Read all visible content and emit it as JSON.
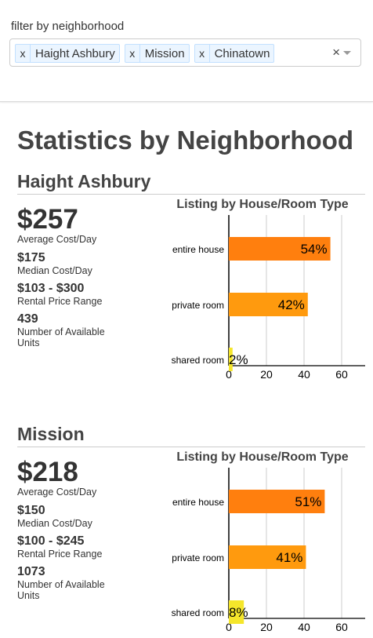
{
  "filter": {
    "label": "filter by neighborhood",
    "remove_glyph": "x",
    "clear_glyph": "×",
    "selected": [
      "Haight Ashbury",
      "Mission",
      "Chinatown"
    ]
  },
  "page_title": "Statistics by Neighborhood",
  "sections": [
    {
      "name": "Haight Ashbury",
      "average_cost": "$257",
      "average_cost_label": "Average Cost/Day",
      "median_cost": "$175",
      "median_cost_label": "Median Cost/Day",
      "price_range": "$103 - $300",
      "price_range_label": "Rental Price Range",
      "available_units": "439",
      "available_units_label": "Number of Available Units"
    },
    {
      "name": "Mission",
      "average_cost": "$218",
      "average_cost_label": "Average Cost/Day",
      "median_cost": "$150",
      "median_cost_label": "Median Cost/Day",
      "price_range": "$100 - $245",
      "price_range_label": "Rental Price Range",
      "available_units": "1073",
      "available_units_label": "Number of Available Units"
    }
  ],
  "chart_data": [
    {
      "type": "bar",
      "orientation": "horizontal",
      "title": "Listing by House/Room Type",
      "categories": [
        "entire house",
        "private room",
        "shared room"
      ],
      "values": [
        54,
        42,
        2
      ],
      "value_labels": [
        "54%",
        "42%",
        "2%"
      ],
      "colors": [
        "#ff7f0e",
        "#ff9a0e",
        "#f5e62b"
      ],
      "xlim": [
        0,
        75
      ],
      "xticks": [
        "0",
        "20",
        "40",
        "60"
      ],
      "grid": true
    },
    {
      "type": "bar",
      "orientation": "horizontal",
      "title": "Listing by House/Room Type",
      "categories": [
        "entire house",
        "private room",
        "shared room"
      ],
      "values": [
        51,
        41,
        8
      ],
      "value_labels": [
        "51%",
        "41%",
        "8%"
      ],
      "colors": [
        "#ff7f0e",
        "#ff9a0e",
        "#f5e62b"
      ],
      "xlim": [
        0,
        75
      ],
      "xticks": [
        "0",
        "20",
        "40",
        "60"
      ],
      "grid": true
    }
  ]
}
